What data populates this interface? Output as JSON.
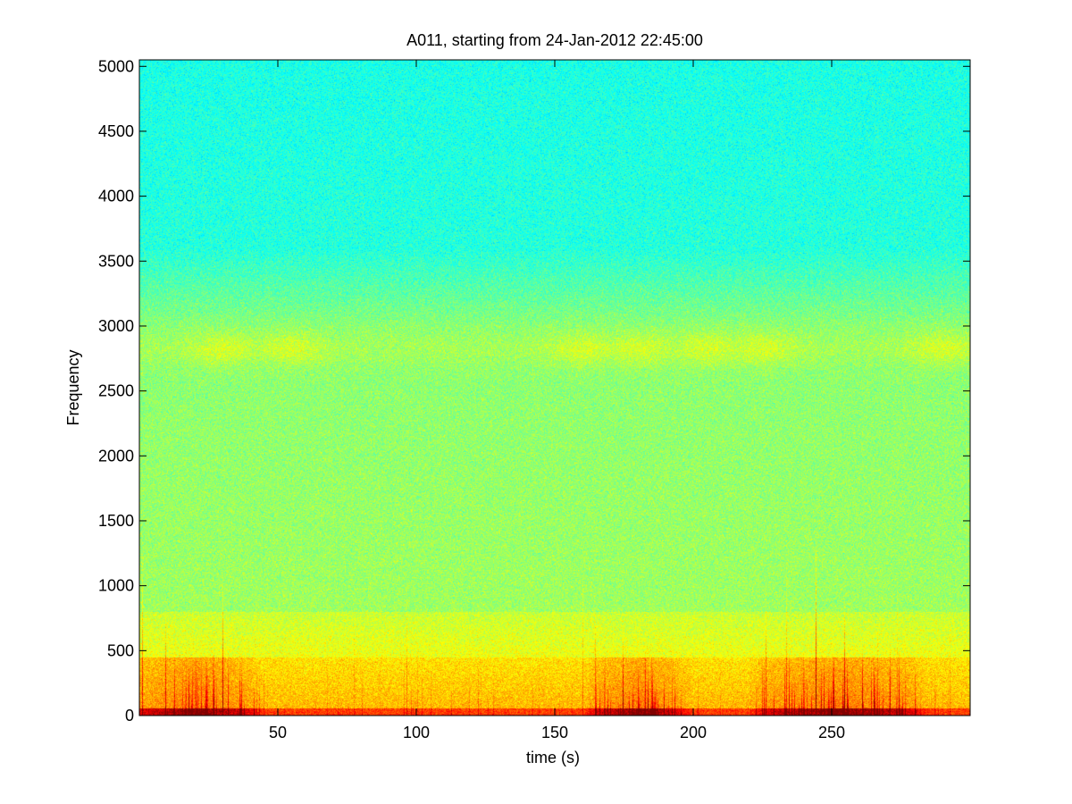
{
  "chart_data": {
    "type": "heatmap",
    "title": "A011, starting from 24-Jan-2012 22:45:00",
    "xlabel": "time (s)",
    "ylabel": "Frequency",
    "xlim": [
      0,
      300
    ],
    "ylim": [
      0,
      5050
    ],
    "x_ticks": [
      50,
      100,
      150,
      200,
      250
    ],
    "x_tick_labels": [
      "50",
      "100",
      "150",
      "200",
      "250"
    ],
    "y_ticks": [
      0,
      500,
      1000,
      1500,
      2000,
      2500,
      3000,
      3500,
      4000,
      4500,
      5000
    ],
    "y_tick_labels": [
      "0",
      "500",
      "1000",
      "1500",
      "2000",
      "2500",
      "3000",
      "3500",
      "4000",
      "4500",
      "5000"
    ],
    "colormap": "jet",
    "grid": false,
    "legend": "none",
    "bands": [
      {
        "freq_range": [
          0,
          60
        ],
        "level": "high"
      },
      {
        "freq_range": [
          60,
          700
        ],
        "level": "elevated"
      },
      {
        "freq_range": [
          2700,
          2950
        ],
        "level": "moderate"
      },
      {
        "freq_range": [
          3600,
          5050
        ],
        "level": "low"
      }
    ],
    "activity_periods_s": [
      [
        5,
        35
      ],
      [
        170,
        190
      ],
      [
        230,
        275
      ]
    ]
  }
}
